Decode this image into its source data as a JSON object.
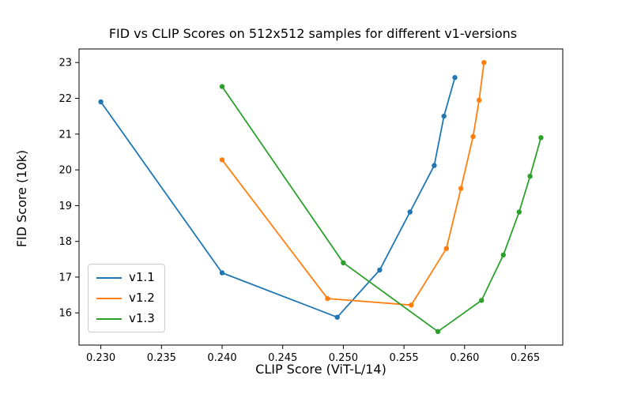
{
  "chart_data": {
    "type": "line",
    "title": "FID vs CLIP Scores on 512x512 samples for different v1-versions",
    "xlabel": "CLIP Score (ViT-L/14)",
    "ylabel": "FID Score (10k)",
    "xlim": [
      0.2282,
      0.2681
    ],
    "ylim": [
      15.1,
      23.38
    ],
    "xticks": [
      0.23,
      0.235,
      0.24,
      0.245,
      0.25,
      0.255,
      0.26,
      0.265
    ],
    "yticks": [
      16,
      17,
      18,
      19,
      20,
      21,
      22,
      23
    ],
    "grid": false,
    "legend_position": "lower left",
    "marker": "o",
    "series": [
      {
        "name": "v1.1",
        "color": "#1f77b4",
        "points": [
          [
            0.23,
            21.9
          ],
          [
            0.24,
            17.12
          ],
          [
            0.2495,
            15.88
          ],
          [
            0.253,
            17.2
          ],
          [
            0.2555,
            18.82
          ],
          [
            0.2575,
            20.12
          ],
          [
            0.2583,
            21.5
          ],
          [
            0.2592,
            22.58
          ]
        ]
      },
      {
        "name": "v1.2",
        "color": "#ff7f0e",
        "points": [
          [
            0.24,
            20.28
          ],
          [
            0.2487,
            16.4
          ],
          [
            0.2556,
            16.22
          ],
          [
            0.2585,
            17.8
          ],
          [
            0.2597,
            19.48
          ],
          [
            0.2607,
            20.93
          ],
          [
            0.2612,
            21.95
          ],
          [
            0.2616,
            23.0
          ]
        ]
      },
      {
        "name": "v1.3",
        "color": "#2ca02c",
        "points": [
          [
            0.24,
            22.33
          ],
          [
            0.25,
            17.4
          ],
          [
            0.2578,
            15.48
          ],
          [
            0.2614,
            16.35
          ],
          [
            0.2632,
            17.62
          ],
          [
            0.2645,
            18.82
          ],
          [
            0.2654,
            19.82
          ],
          [
            0.2663,
            20.9
          ]
        ]
      }
    ]
  }
}
